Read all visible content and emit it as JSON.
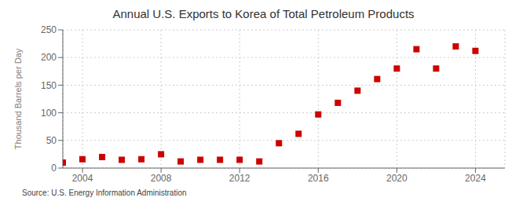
{
  "chart_data": {
    "type": "scatter",
    "title": "Annual U.S. Exports to Korea of Total Petroleum Products",
    "ylabel": "Thousand Barrels per Day",
    "annotation": "Source: U.S. Energy Information Administration",
    "x": [
      2003,
      2004,
      2005,
      2006,
      2007,
      2008,
      2009,
      2010,
      2011,
      2012,
      2013,
      2014,
      2015,
      2016,
      2017,
      2018,
      2019,
      2020,
      2021,
      2022,
      2023,
      2024
    ],
    "values": [
      10,
      16,
      20,
      15,
      16,
      25,
      12,
      15,
      15,
      15,
      12,
      45,
      62,
      97,
      118,
      140,
      161,
      180,
      215,
      180,
      220,
      212
    ],
    "color": "#cc0000",
    "marker": "square",
    "xlim": [
      2003.0,
      2025.5
    ],
    "ylim": [
      0,
      250
    ],
    "xticks": [
      2004,
      2008,
      2012,
      2016,
      2020,
      2024
    ],
    "yticks": [
      0,
      50,
      100,
      150,
      200,
      250
    ],
    "grid": true
  }
}
